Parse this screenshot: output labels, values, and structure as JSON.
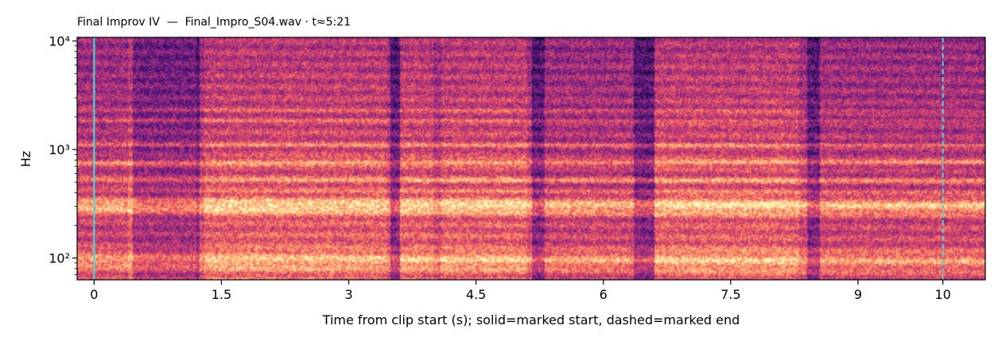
{
  "chart_data": {
    "type": "heatmap",
    "title": "Final Improv IV  —  Final_Impro_S04.wav · t≈5:21",
    "xlabel": "Time from clip start (s); solid=marked start, dashed=marked end",
    "ylabel": "Hz",
    "yscale": "log",
    "xlim": [
      -0.2,
      10.5
    ],
    "ylim": [
      63,
      10800
    ],
    "x_ticks": [
      0,
      1.5,
      3,
      4.5,
      6,
      7.5,
      9,
      10
    ],
    "x_tick_labels": [
      "0",
      "1.5",
      "3",
      "4.5",
      "6",
      "7.5",
      "9",
      "10"
    ],
    "y_ticks": [
      100,
      1000,
      10000
    ],
    "y_tick_labels": [
      "10²",
      "10³",
      "10⁴"
    ],
    "colormap": "magma",
    "markers": [
      {
        "x": 0,
        "style": "solid",
        "color": "#40e0e0"
      },
      {
        "x": 10.0,
        "style": "dashed",
        "color": "#40e0e0"
      }
    ]
  }
}
